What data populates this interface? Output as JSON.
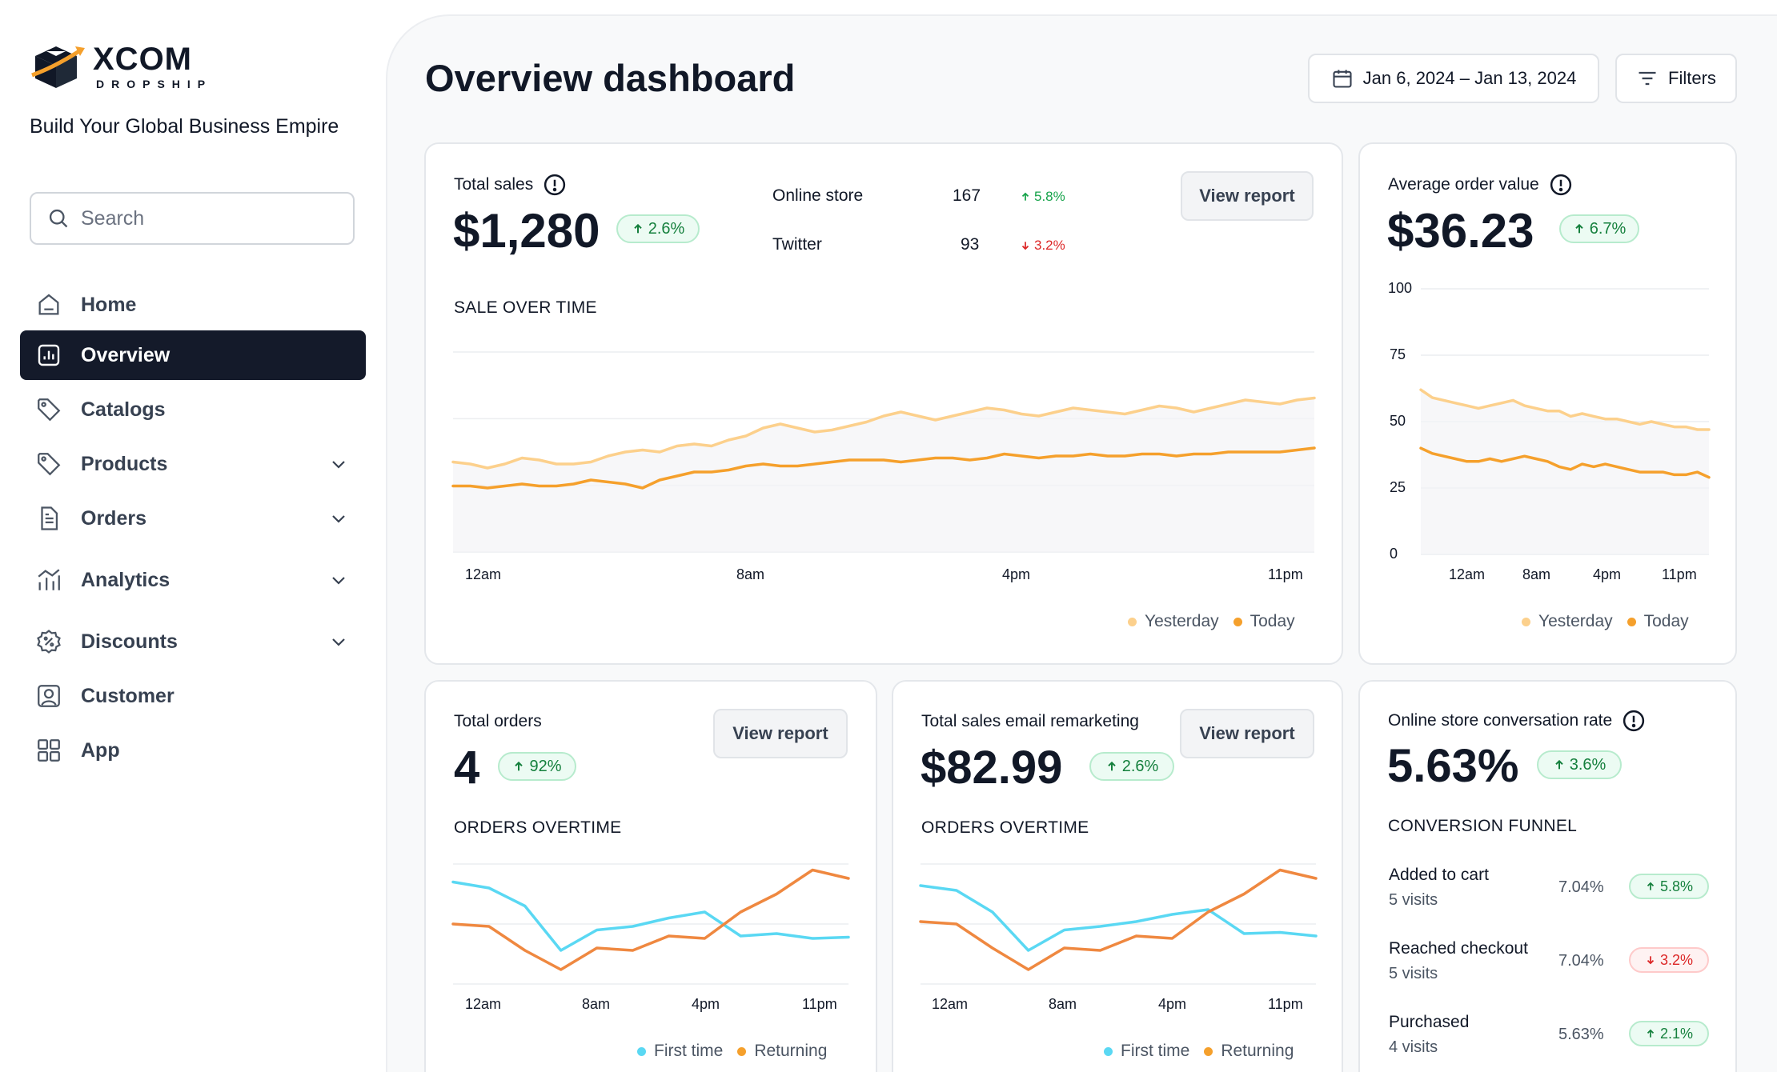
{
  "brand": {
    "name": "XCOM",
    "sub": "DROPSHIP",
    "tagline": "Build Your Global Business Empire"
  },
  "search": {
    "placeholder": "Search"
  },
  "nav": [
    {
      "label": "Home",
      "icon": "home-icon",
      "active": false,
      "chevron": false
    },
    {
      "label": "Overview",
      "icon": "chart-icon",
      "active": true,
      "chevron": false
    },
    {
      "label": "Catalogs",
      "icon": "tag-icon",
      "active": false,
      "chevron": false
    },
    {
      "label": "Products",
      "icon": "tag-icon",
      "active": false,
      "chevron": true
    },
    {
      "label": "Orders",
      "icon": "document-icon",
      "active": false,
      "chevron": true
    },
    {
      "label": "Analytics",
      "icon": "analytics-icon",
      "active": false,
      "chevron": true
    },
    {
      "label": "Discounts",
      "icon": "discount-icon",
      "active": false,
      "chevron": true
    },
    {
      "label": "Customer",
      "icon": "user-icon",
      "active": false,
      "chevron": false
    },
    {
      "label": "App",
      "icon": "grid-icon",
      "active": false,
      "chevron": false
    }
  ],
  "header": {
    "title": "Overview dashboard",
    "date_range": "Jan 6, 2024 – Jan 13, 2024",
    "filters": "Filters"
  },
  "colors": {
    "yesterday": "#fcd08c",
    "today": "#f5a02c",
    "first_time": "#5ad8f3",
    "returning": "#ef8840",
    "active_nav": "#141a2a",
    "green": "#15803d",
    "red": "#dc2626"
  },
  "total_sales": {
    "label": "Total sales",
    "value": "$1,280",
    "change": "2.6%",
    "view_report": "View report",
    "channels": [
      {
        "name": "Online store",
        "count": "167",
        "change": "5.8%",
        "direction": "up"
      },
      {
        "name": "Twitter",
        "count": "93",
        "change": "3.2%",
        "direction": "down"
      }
    ],
    "section": "SALE OVER TIME",
    "legend": [
      "Yesterday",
      "Today"
    ]
  },
  "avg_order": {
    "label": "Average order value",
    "value": "$36.23",
    "change": "6.7%",
    "legend": [
      "Yesterday",
      "Today"
    ]
  },
  "total_orders": {
    "label": "Total orders",
    "value": "4",
    "change": "92%",
    "view_report": "View report",
    "section": "ORDERS OVERTIME",
    "legend": [
      "First time",
      "Returning"
    ]
  },
  "email": {
    "label": "Total sales email remarketing",
    "value": "$82.99",
    "change": "2.6%",
    "view_report": "View report",
    "section": "ORDERS OVERTIME",
    "legend": [
      "First time",
      "Returning"
    ]
  },
  "conversion": {
    "label": "Online store conversation rate",
    "value": "5.63%",
    "change": "3.6%",
    "section": "CONVERSION FUNNEL",
    "funnel": [
      {
        "name": "Added to cart",
        "visits": "5 visits",
        "pct": "7.04%",
        "change": "5.8%",
        "direction": "up"
      },
      {
        "name": "Reached checkout",
        "visits": "5 visits",
        "pct": "7.04%",
        "change": "3.2%",
        "direction": "down"
      },
      {
        "name": "Purchased",
        "visits": "4 visits",
        "pct": "5.63%",
        "change": "2.1%",
        "direction": "up"
      }
    ]
  },
  "chart_data": [
    {
      "type": "area",
      "title": "SALE OVER TIME",
      "x_ticks": [
        "12am",
        "8am",
        "4pm",
        "11pm"
      ],
      "y_range": [
        0,
        100
      ],
      "grid": true,
      "legend_position": "bottom-right",
      "series": [
        {
          "name": "Yesterday",
          "values": [
            45,
            44,
            42,
            44,
            47,
            46,
            44,
            44,
            45,
            48,
            50,
            51,
            50,
            53,
            54,
            53,
            56,
            58,
            62,
            64,
            62,
            60,
            61,
            63,
            65,
            68,
            70,
            68,
            66,
            68,
            70,
            72,
            71,
            69,
            68,
            70,
            72,
            71,
            70,
            69,
            71,
            73,
            72,
            70,
            72,
            74,
            76,
            75,
            74,
            76,
            77
          ]
        },
        {
          "name": "Today",
          "values": [
            33,
            33,
            32,
            33,
            34,
            33,
            33,
            34,
            36,
            35,
            34,
            32,
            36,
            38,
            40,
            40,
            41,
            43,
            44,
            43,
            43,
            44,
            45,
            46,
            46,
            46,
            45,
            46,
            47,
            47,
            46,
            47,
            49,
            48,
            47,
            48,
            48,
            49,
            48,
            48,
            49,
            49,
            48,
            49,
            49,
            50,
            50,
            50,
            50,
            51,
            52
          ]
        }
      ]
    },
    {
      "type": "area",
      "title": "",
      "x_ticks": [
        "12am",
        "8am",
        "4pm",
        "11pm"
      ],
      "y_ticks": [
        0,
        25,
        50,
        75,
        100
      ],
      "y_range": [
        0,
        100
      ],
      "grid": true,
      "legend_position": "bottom-right",
      "series": [
        {
          "name": "Yesterday",
          "values": [
            62,
            59,
            58,
            57,
            56,
            55,
            56,
            57,
            58,
            56,
            55,
            54,
            54,
            52,
            53,
            52,
            51,
            51,
            50,
            49,
            50,
            49,
            48,
            48,
            47,
            47
          ]
        },
        {
          "name": "Today",
          "values": [
            40,
            38,
            37,
            36,
            35,
            35,
            36,
            35,
            36,
            37,
            36,
            35,
            33,
            32,
            34,
            33,
            34,
            33,
            32,
            31,
            31,
            31,
            30,
            30,
            31,
            29
          ]
        }
      ]
    },
    {
      "type": "line",
      "title": "ORDERS OVERTIME",
      "x_ticks": [
        "12am",
        "8am",
        "4pm",
        "11pm"
      ],
      "y_range": [
        0,
        100
      ],
      "grid": true,
      "legend_position": "bottom-right",
      "series": [
        {
          "name": "First time",
          "values": [
            85,
            80,
            65,
            28,
            45,
            48,
            55,
            60,
            40,
            42,
            38,
            39
          ]
        },
        {
          "name": "Returning",
          "values": [
            50,
            48,
            28,
            12,
            30,
            28,
            40,
            38,
            60,
            75,
            95,
            88
          ]
        }
      ]
    },
    {
      "type": "line",
      "title": "ORDERS OVERTIME",
      "x_ticks": [
        "12am",
        "8am",
        "4pm",
        "11pm"
      ],
      "y_range": [
        0,
        100
      ],
      "grid": true,
      "legend_position": "bottom-right",
      "series": [
        {
          "name": "First time",
          "values": [
            82,
            78,
            60,
            28,
            45,
            48,
            52,
            58,
            62,
            42,
            43,
            40
          ]
        },
        {
          "name": "Returning",
          "values": [
            52,
            50,
            30,
            12,
            30,
            28,
            40,
            38,
            60,
            75,
            95,
            88
          ]
        }
      ]
    }
  ]
}
